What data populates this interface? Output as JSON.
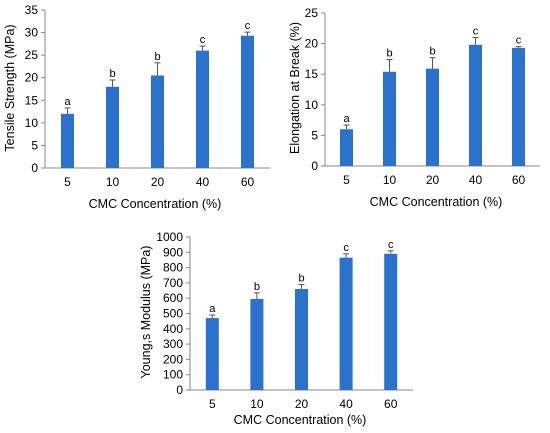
{
  "colors": {
    "bar": "#2a72cc",
    "axis": "#888888",
    "text": "#000000"
  },
  "chart_data": [
    {
      "type": "bar",
      "title": "",
      "xlabel": "CMC Concentration (%)",
      "ylabel": "Tensile Strength (MPa)",
      "categories": [
        "5",
        "10",
        "20",
        "40",
        "60"
      ],
      "values": [
        12.0,
        18.0,
        20.5,
        26.0,
        29.3
      ],
      "errors": [
        1.3,
        1.5,
        2.8,
        1.0,
        0.8
      ],
      "labels": [
        "a",
        "b",
        "b",
        "c",
        "c"
      ],
      "ylim": [
        0,
        35
      ],
      "yticks": [
        "0",
        "5",
        "10",
        "15",
        "20",
        "25",
        "30",
        "35"
      ],
      "grid": false
    },
    {
      "type": "bar",
      "title": "",
      "xlabel": "CMC Concentration (%)",
      "ylabel": "Elongation at Break (%)",
      "categories": [
        "5",
        "10",
        "20",
        "40",
        "60"
      ],
      "values": [
        6.0,
        15.4,
        15.9,
        19.8,
        19.3
      ],
      "errors": [
        0.7,
        2.0,
        1.8,
        1.2,
        0.2
      ],
      "labels": [
        "a",
        "b",
        "b",
        "c",
        "c"
      ],
      "ylim": [
        0,
        25
      ],
      "yticks": [
        "0",
        "5",
        "10",
        "15",
        "20",
        "25"
      ],
      "grid": false
    },
    {
      "type": "bar",
      "title": "",
      "xlabel": "CMC Concentration (%)",
      "ylabel": "Young,s Modulus (MPa)",
      "categories": [
        "5",
        "10",
        "20",
        "40",
        "60"
      ],
      "values": [
        470,
        595,
        660,
        865,
        890
      ],
      "errors": [
        20,
        40,
        30,
        25,
        20
      ],
      "labels": [
        "a",
        "b",
        "b",
        "c",
        "c"
      ],
      "ylim": [
        0,
        1000
      ],
      "yticks": [
        "0",
        "100",
        "200",
        "300",
        "400",
        "500",
        "600",
        "700",
        "800",
        "900",
        "1000"
      ],
      "grid": false
    }
  ]
}
